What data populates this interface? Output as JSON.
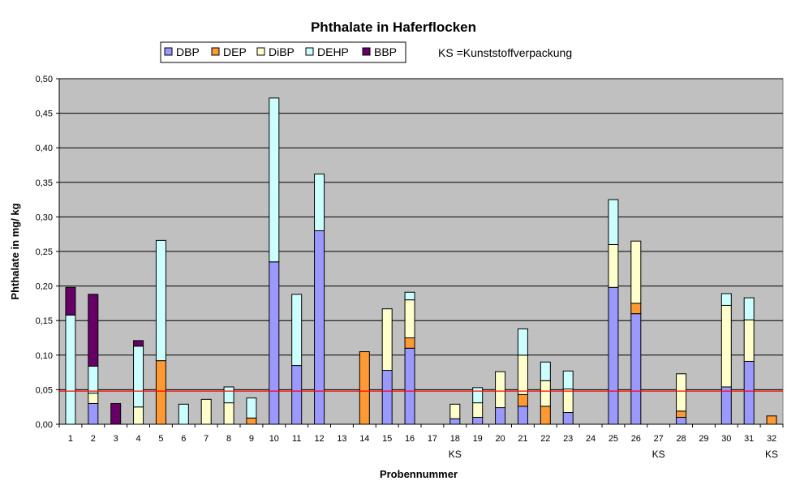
{
  "chart_data": {
    "type": "bar",
    "stacked": true,
    "title": "Phthalate in Haferflocken",
    "xlabel": "Probennummer",
    "ylabel": "Phthalate in mg/ kg",
    "ylim": [
      0,
      0.5
    ],
    "yticks": [
      "0,00",
      "0,05",
      "0,10",
      "0,15",
      "0,20",
      "0,25",
      "0,30",
      "0,35",
      "0,40",
      "0,45",
      "0,50"
    ],
    "grid": true,
    "legend_position": "top",
    "note": "KS =Kunststoffverpackung",
    "categories": [
      "1",
      "2",
      "3",
      "4",
      "5",
      "6",
      "7",
      "8",
      "9",
      "10",
      "11",
      "12",
      "13",
      "14",
      "15",
      "16",
      "17",
      "18",
      "19",
      "20",
      "21",
      "22",
      "23",
      "24",
      "25",
      "26",
      "27",
      "28",
      "29",
      "30",
      "31",
      "32"
    ],
    "category_sublabels": [
      "",
      "",
      "",
      "",
      "",
      "",
      "",
      "",
      "",
      "",
      "",
      "",
      "",
      "",
      "",
      "",
      "",
      "KS",
      "",
      "",
      "",
      "",
      "",
      "",
      "",
      "",
      "KS",
      "",
      "",
      "",
      "",
      "KS"
    ],
    "reference_line": {
      "value": 0.048,
      "color": "#ff0000"
    },
    "series": [
      {
        "name": "DBP",
        "color": "#9999ff",
        "values": [
          0,
          0.03,
          0,
          0,
          0,
          0,
          0,
          0,
          0,
          0.235,
          0.085,
          0.28,
          0,
          0,
          0.078,
          0.11,
          0,
          0.008,
          0.01,
          0.024,
          0.026,
          0,
          0.017,
          0,
          0.198,
          0.16,
          0,
          0.01,
          0,
          0.054,
          0.091,
          0
        ]
      },
      {
        "name": "DEP",
        "color": "#ff9933",
        "values": [
          0,
          0,
          0,
          0,
          0.092,
          0,
          0,
          0,
          0.009,
          0,
          0,
          0,
          0,
          0.105,
          0,
          0.015,
          0,
          0,
          0,
          0,
          0.017,
          0.026,
          0,
          0,
          0,
          0.015,
          0,
          0.009,
          0,
          0,
          0,
          0.012
        ]
      },
      {
        "name": "DiBP",
        "color": "#ffffcc",
        "values": [
          0,
          0.015,
          0,
          0.025,
          0,
          0,
          0.036,
          0.031,
          0,
          0,
          0,
          0,
          0,
          0,
          0.089,
          0.055,
          0,
          0.021,
          0.021,
          0.052,
          0.057,
          0.037,
          0.034,
          0,
          0.062,
          0.09,
          0,
          0.054,
          0,
          0.118,
          0.06,
          0
        ]
      },
      {
        "name": "DEHP",
        "color": "#ccffff",
        "values": [
          0.158,
          0.039,
          0,
          0.088,
          0.174,
          0.029,
          0,
          0.023,
          0.029,
          0.237,
          0.103,
          0.082,
          0,
          0,
          0,
          0.011,
          0,
          0,
          0.022,
          0,
          0.038,
          0.027,
          0.026,
          0,
          0.065,
          0,
          0,
          0,
          0,
          0.017,
          0.032,
          0
        ]
      },
      {
        "name": "BBP",
        "color": "#660066",
        "values": [
          0.04,
          0.104,
          0.03,
          0.008,
          0,
          0,
          0,
          0,
          0,
          0,
          0,
          0,
          0,
          0,
          0,
          0,
          0,
          0,
          0,
          0,
          0,
          0,
          0,
          0,
          0,
          0,
          0,
          0,
          0,
          0,
          0,
          0
        ]
      }
    ]
  }
}
